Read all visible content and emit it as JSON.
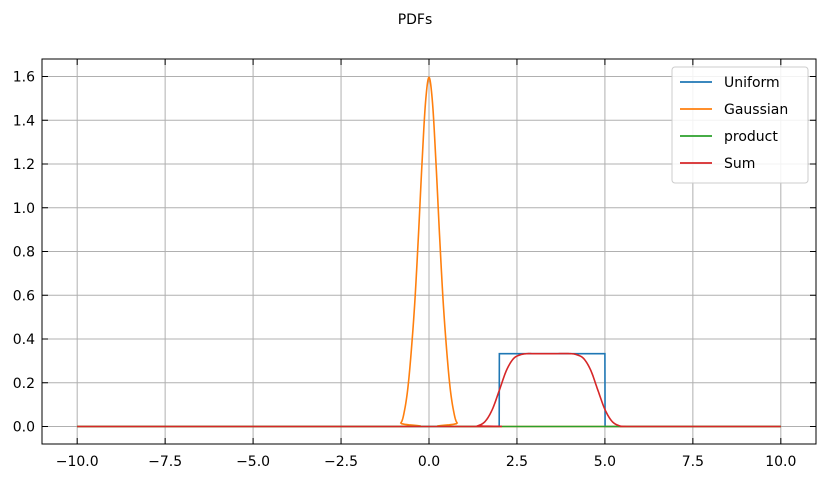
{
  "chart_data": {
    "type": "line",
    "title": "PDFs",
    "xlabel": "",
    "ylabel": "",
    "xlim": [
      -11.0,
      11.0
    ],
    "ylim": [
      -0.08,
      1.68
    ],
    "xticks": [
      -10.0,
      -7.5,
      -5.0,
      -2.5,
      0.0,
      2.5,
      5.0,
      7.5,
      10.0
    ],
    "xtick_labels": [
      "−10.0",
      "−7.5",
      "−5.0",
      "−2.5",
      "0.0",
      "2.5",
      "5.0",
      "7.5",
      "10.0"
    ],
    "yticks": [
      0.0,
      0.2,
      0.4,
      0.6,
      0.8,
      1.0,
      1.2,
      1.4,
      1.6
    ],
    "ytick_labels": [
      "0.0",
      "0.2",
      "0.4",
      "0.6",
      "0.8",
      "1.0",
      "1.2",
      "1.4",
      "1.6"
    ],
    "grid": true,
    "legend_position": "top-right",
    "series": [
      {
        "name": "Uniform",
        "color": "#1f77b4",
        "x": [
          -10,
          1.995,
          2.0,
          5.0,
          5.005,
          10
        ],
        "y": [
          0,
          0,
          0.333,
          0.333,
          0,
          0
        ]
      },
      {
        "name": "Gaussian",
        "color": "#ff7f0e",
        "x": [
          -10,
          -1.0,
          -0.8,
          -0.7,
          -0.6,
          -0.5,
          -0.4,
          -0.3,
          -0.2,
          -0.1,
          0.0,
          0.1,
          0.2,
          0.3,
          0.4,
          0.5,
          0.6,
          0.7,
          0.8,
          1.0,
          10
        ],
        "y": [
          0,
          0,
          0.016,
          0.07,
          0.177,
          0.353,
          0.578,
          0.874,
          1.2,
          1.479,
          1.596,
          1.479,
          1.2,
          0.874,
          0.578,
          0.353,
          0.177,
          0.07,
          0.016,
          0,
          0
        ]
      },
      {
        "name": "product",
        "color": "#2ca02c",
        "x": [
          -10,
          10
        ],
        "y": [
          0,
          0
        ]
      },
      {
        "name": "Sum",
        "color": "#d62728",
        "x": [
          -10,
          1.2,
          1.4,
          1.6,
          1.8,
          2.0,
          2.2,
          2.4,
          2.6,
          2.8,
          3.0,
          3.5,
          4.0,
          4.2,
          4.4,
          4.6,
          4.8,
          5.0,
          5.2,
          5.4,
          5.6,
          5.8,
          10
        ],
        "y": [
          0,
          0,
          0.004,
          0.024,
          0.078,
          0.166,
          0.256,
          0.31,
          0.328,
          0.333,
          0.333,
          0.333,
          0.333,
          0.328,
          0.31,
          0.256,
          0.166,
          0.078,
          0.024,
          0.004,
          0,
          0,
          0
        ]
      }
    ]
  }
}
